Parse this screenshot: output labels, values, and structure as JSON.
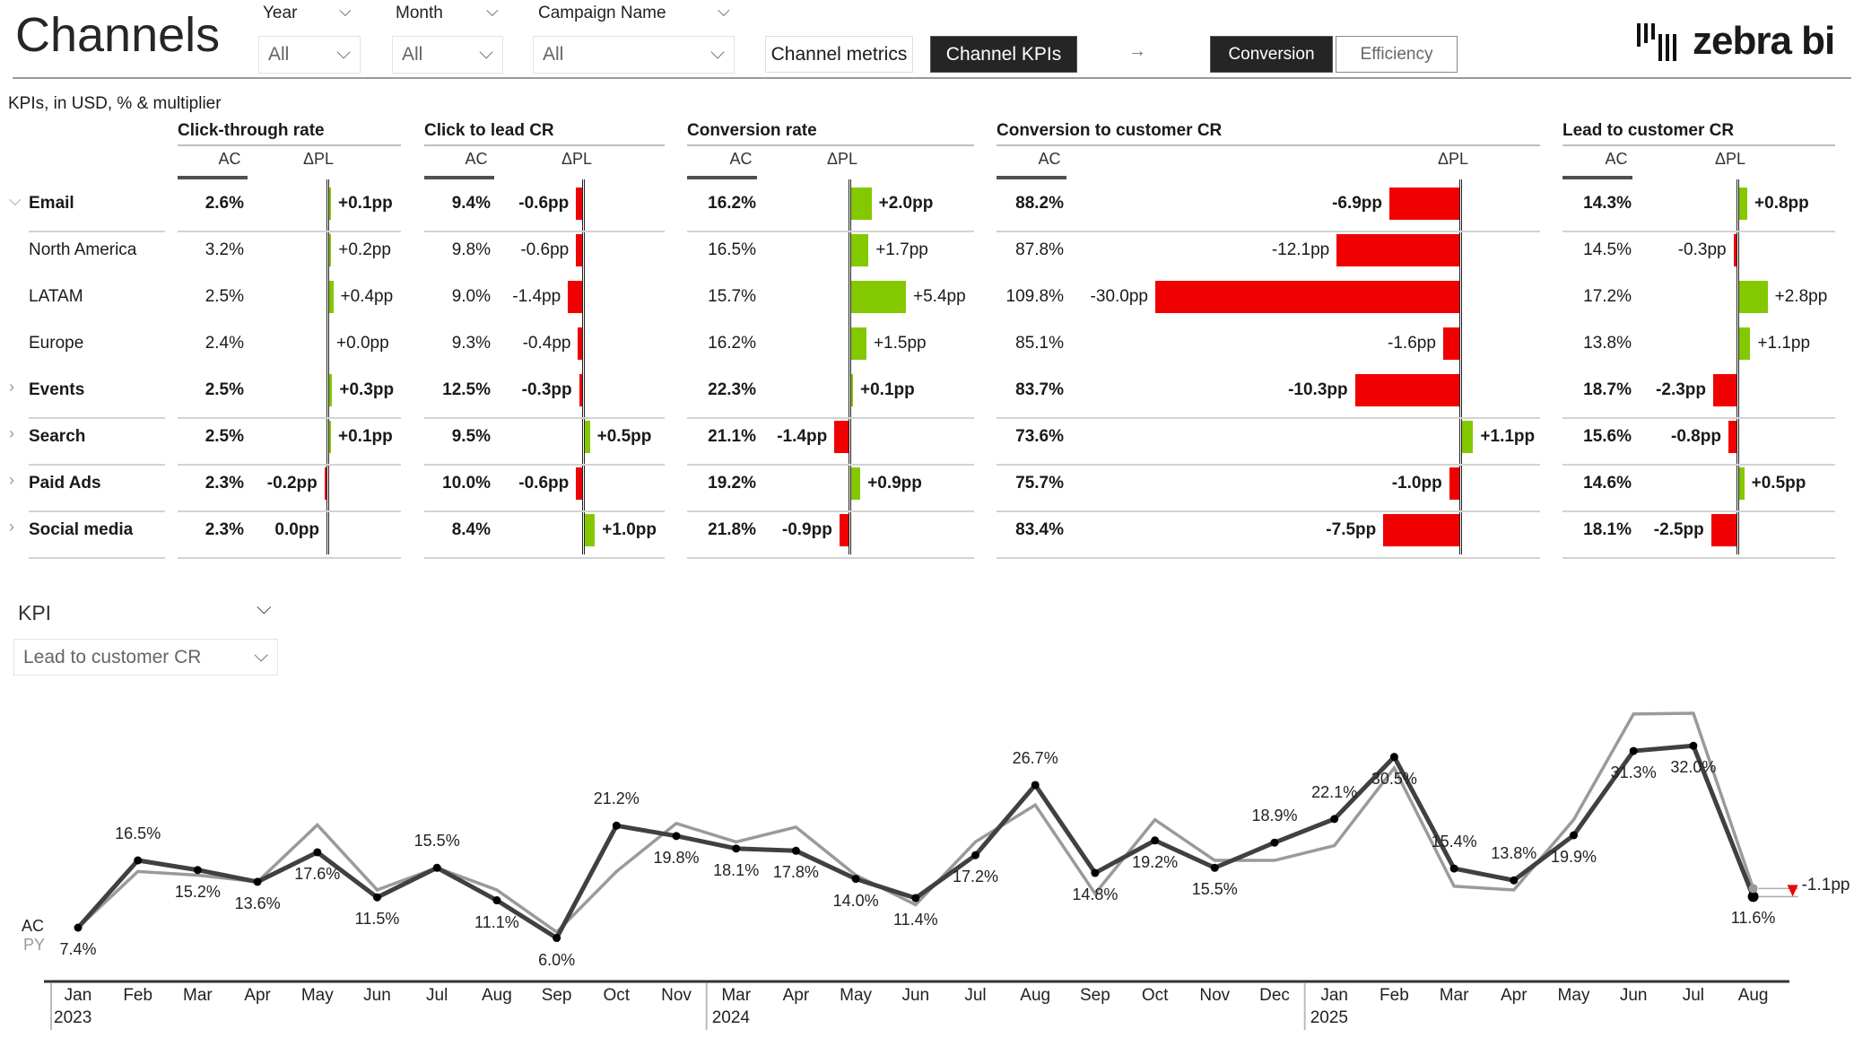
{
  "header": {
    "title": "Channels",
    "filters": [
      {
        "label": "Year",
        "value": "All"
      },
      {
        "label": "Month",
        "value": "All"
      },
      {
        "label": "Campaign Name",
        "value": "All"
      }
    ],
    "page_buttons": [
      {
        "label": "Channel metrics",
        "active": false
      },
      {
        "label": "Channel KPIs",
        "active": true
      }
    ],
    "arrow": "→",
    "view_toggle": [
      {
        "label": "Conversion",
        "active": true
      },
      {
        "label": "Efficiency",
        "active": false
      }
    ],
    "logo_text": "zebra bi"
  },
  "table": {
    "subtitle": "KPIs, in USD, % & multiplier",
    "ac_label": "AC",
    "delta_label": "ΔPL",
    "colors": {
      "positive": "#84c800",
      "negative": "#f00000"
    },
    "kpis": [
      "Click-through rate",
      "Click to lead CR",
      "Conversion rate",
      "Conversion to customer CR",
      "Lead to customer CR"
    ],
    "rows": [
      {
        "name": "Email",
        "level": 0,
        "expanded": true,
        "values": [
          [
            "2.6%",
            "+0.1pp"
          ],
          [
            "9.4%",
            "-0.6pp"
          ],
          [
            "16.2%",
            "+2.0pp"
          ],
          [
            "88.2%",
            "-6.9pp"
          ],
          [
            "14.3%",
            "+0.8pp"
          ]
        ]
      },
      {
        "name": "North America",
        "level": 1,
        "values": [
          [
            "3.2%",
            "+0.2pp"
          ],
          [
            "9.8%",
            "-0.6pp"
          ],
          [
            "16.5%",
            "+1.7pp"
          ],
          [
            "87.8%",
            "-12.1pp"
          ],
          [
            "14.5%",
            "-0.3pp"
          ]
        ]
      },
      {
        "name": "LATAM",
        "level": 1,
        "values": [
          [
            "2.5%",
            "+0.4pp"
          ],
          [
            "9.0%",
            "-1.4pp"
          ],
          [
            "15.7%",
            "+5.4pp"
          ],
          [
            "109.8%",
            "-30.0pp"
          ],
          [
            "17.2%",
            "+2.8pp"
          ]
        ]
      },
      {
        "name": "Europe",
        "level": 1,
        "values": [
          [
            "2.4%",
            "+0.0pp"
          ],
          [
            "9.3%",
            "-0.4pp"
          ],
          [
            "16.2%",
            "+1.5pp"
          ],
          [
            "85.1%",
            "-1.6pp"
          ],
          [
            "13.8%",
            "+1.1pp"
          ]
        ]
      },
      {
        "name": "Events",
        "level": 0,
        "expanded": false,
        "values": [
          [
            "2.5%",
            "+0.3pp"
          ],
          [
            "12.5%",
            "-0.3pp"
          ],
          [
            "22.3%",
            "+0.1pp"
          ],
          [
            "83.7%",
            "-10.3pp"
          ],
          [
            "18.7%",
            "-2.3pp"
          ]
        ]
      },
      {
        "name": "Search",
        "level": 0,
        "expanded": false,
        "values": [
          [
            "2.5%",
            "+0.1pp"
          ],
          [
            "9.5%",
            "+0.5pp"
          ],
          [
            "21.1%",
            "-1.4pp"
          ],
          [
            "73.6%",
            "+1.1pp"
          ],
          [
            "15.6%",
            "-0.8pp"
          ]
        ]
      },
      {
        "name": "Paid Ads",
        "level": 0,
        "expanded": false,
        "values": [
          [
            "2.3%",
            "-0.2pp"
          ],
          [
            "10.0%",
            "-0.6pp"
          ],
          [
            "19.2%",
            "+0.9pp"
          ],
          [
            "75.7%",
            "-1.0pp"
          ],
          [
            "14.6%",
            "+0.5pp"
          ]
        ]
      },
      {
        "name": "Social media",
        "level": 0,
        "expanded": false,
        "values": [
          [
            "2.3%",
            "0.0pp"
          ],
          [
            "8.4%",
            "+1.0pp"
          ],
          [
            "21.8%",
            "-0.9pp"
          ],
          [
            "83.4%",
            "-7.5pp"
          ],
          [
            "18.1%",
            "-2.5pp"
          ]
        ]
      }
    ]
  },
  "kpi_selector": {
    "label": "KPI",
    "value": "Lead to customer CR"
  },
  "chart_data": {
    "type": "line",
    "legend": [
      "AC",
      "PY"
    ],
    "x": [
      "Jan",
      "Feb",
      "Mar",
      "Apr",
      "May",
      "Jun",
      "Jul",
      "Aug",
      "Sep",
      "Oct",
      "Nov",
      "Mar",
      "Apr",
      "May",
      "Jun",
      "Jul",
      "Aug",
      "Sep",
      "Oct",
      "Nov",
      "Dec",
      "Jan",
      "Feb",
      "Mar",
      "Apr",
      "May",
      "Jun",
      "Jul",
      "Aug"
    ],
    "years": [
      {
        "label": "2023",
        "start": 0
      },
      {
        "label": "2024",
        "start": 11
      },
      {
        "label": "2025",
        "start": 21
      }
    ],
    "series": [
      {
        "name": "AC",
        "color": "#404040",
        "values": [
          7.4,
          16.5,
          15.2,
          13.6,
          17.6,
          11.5,
          15.5,
          11.1,
          6.0,
          21.2,
          19.8,
          18.1,
          17.8,
          14.0,
          11.4,
          17.2,
          26.7,
          14.8,
          19.2,
          15.5,
          18.9,
          22.1,
          30.5,
          15.4,
          13.8,
          19.9,
          31.3,
          32.0,
          11.6
        ]
      },
      {
        "name": "PY",
        "color": "#9a9a9a",
        "values": [
          7.4,
          15.0,
          14.5,
          13.6,
          21.3,
          12.5,
          15.5,
          12.5,
          6.8,
          15.0,
          21.5,
          19.0,
          21.0,
          14.5,
          10.5,
          19.0,
          24.0,
          12.0,
          22.0,
          16.5,
          16.5,
          18.5,
          29.0,
          13.0,
          12.5,
          22.0,
          36.3,
          36.4,
          12.7
        ]
      }
    ],
    "labels": [
      "7.4%",
      "16.5%",
      "15.2%",
      "13.6%",
      "17.6%",
      "11.5%",
      "15.5%",
      "11.1%",
      "6.0%",
      "21.2%",
      "19.8%",
      "18.1%",
      "17.8%",
      "14.0%",
      "11.4%",
      "17.2%",
      "26.7%",
      "14.8%",
      "19.2%",
      "15.5%",
      "18.9%",
      "22.1%",
      "30.5%",
      "15.4%",
      "13.8%",
      "19.9%",
      "31.3%",
      "32.0%",
      "11.6%"
    ],
    "final_delta": "-1.1pp",
    "final_delta_color": "#f00000"
  }
}
